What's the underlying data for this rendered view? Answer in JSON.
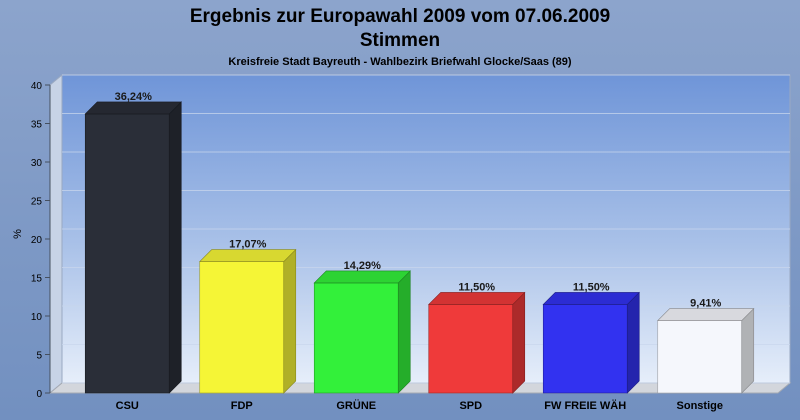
{
  "chart_data": {
    "type": "bar",
    "title": "Ergebnis zur Europawahl 2009 vom 07.06.2009",
    "title_line2": "Stimmen",
    "subtitle": "Kreisfreie Stadt Bayreuth - Wahlbezirk Briefwahl Glocke/Saas (89)",
    "ylabel": "%",
    "xlabel": "",
    "ylim": [
      0,
      40
    ],
    "yticks": [
      "0",
      "5",
      "10",
      "15",
      "20",
      "25",
      "30",
      "35",
      "40"
    ],
    "grid": true,
    "categories": [
      "CSU",
      "FDP",
      "GRÜNE",
      "SPD",
      "FW FREIE WÄH",
      "Sonstige"
    ],
    "values": [
      36.24,
      17.07,
      14.29,
      11.5,
      11.5,
      9.41
    ],
    "value_labels": [
      "36,24%",
      "17,07%",
      "14,29%",
      "11,50%",
      "11,50%",
      "9,41%"
    ],
    "colors": [
      "#2a2e38",
      "#f5f536",
      "#33f03a",
      "#ef3a3a",
      "#3232f0",
      "#f5f7fc"
    ]
  }
}
